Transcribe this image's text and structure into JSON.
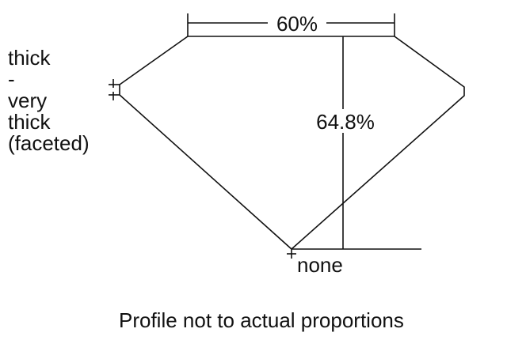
{
  "diagram": {
    "table_percent_label": "60%",
    "depth_percent_label": "64.8%",
    "culet_label": "none",
    "girdle_label_lines": [
      "thick",
      "-",
      "very",
      "thick",
      "(faceted)"
    ],
    "caption": "Profile not to actual proportions",
    "line_color": "#111111"
  }
}
